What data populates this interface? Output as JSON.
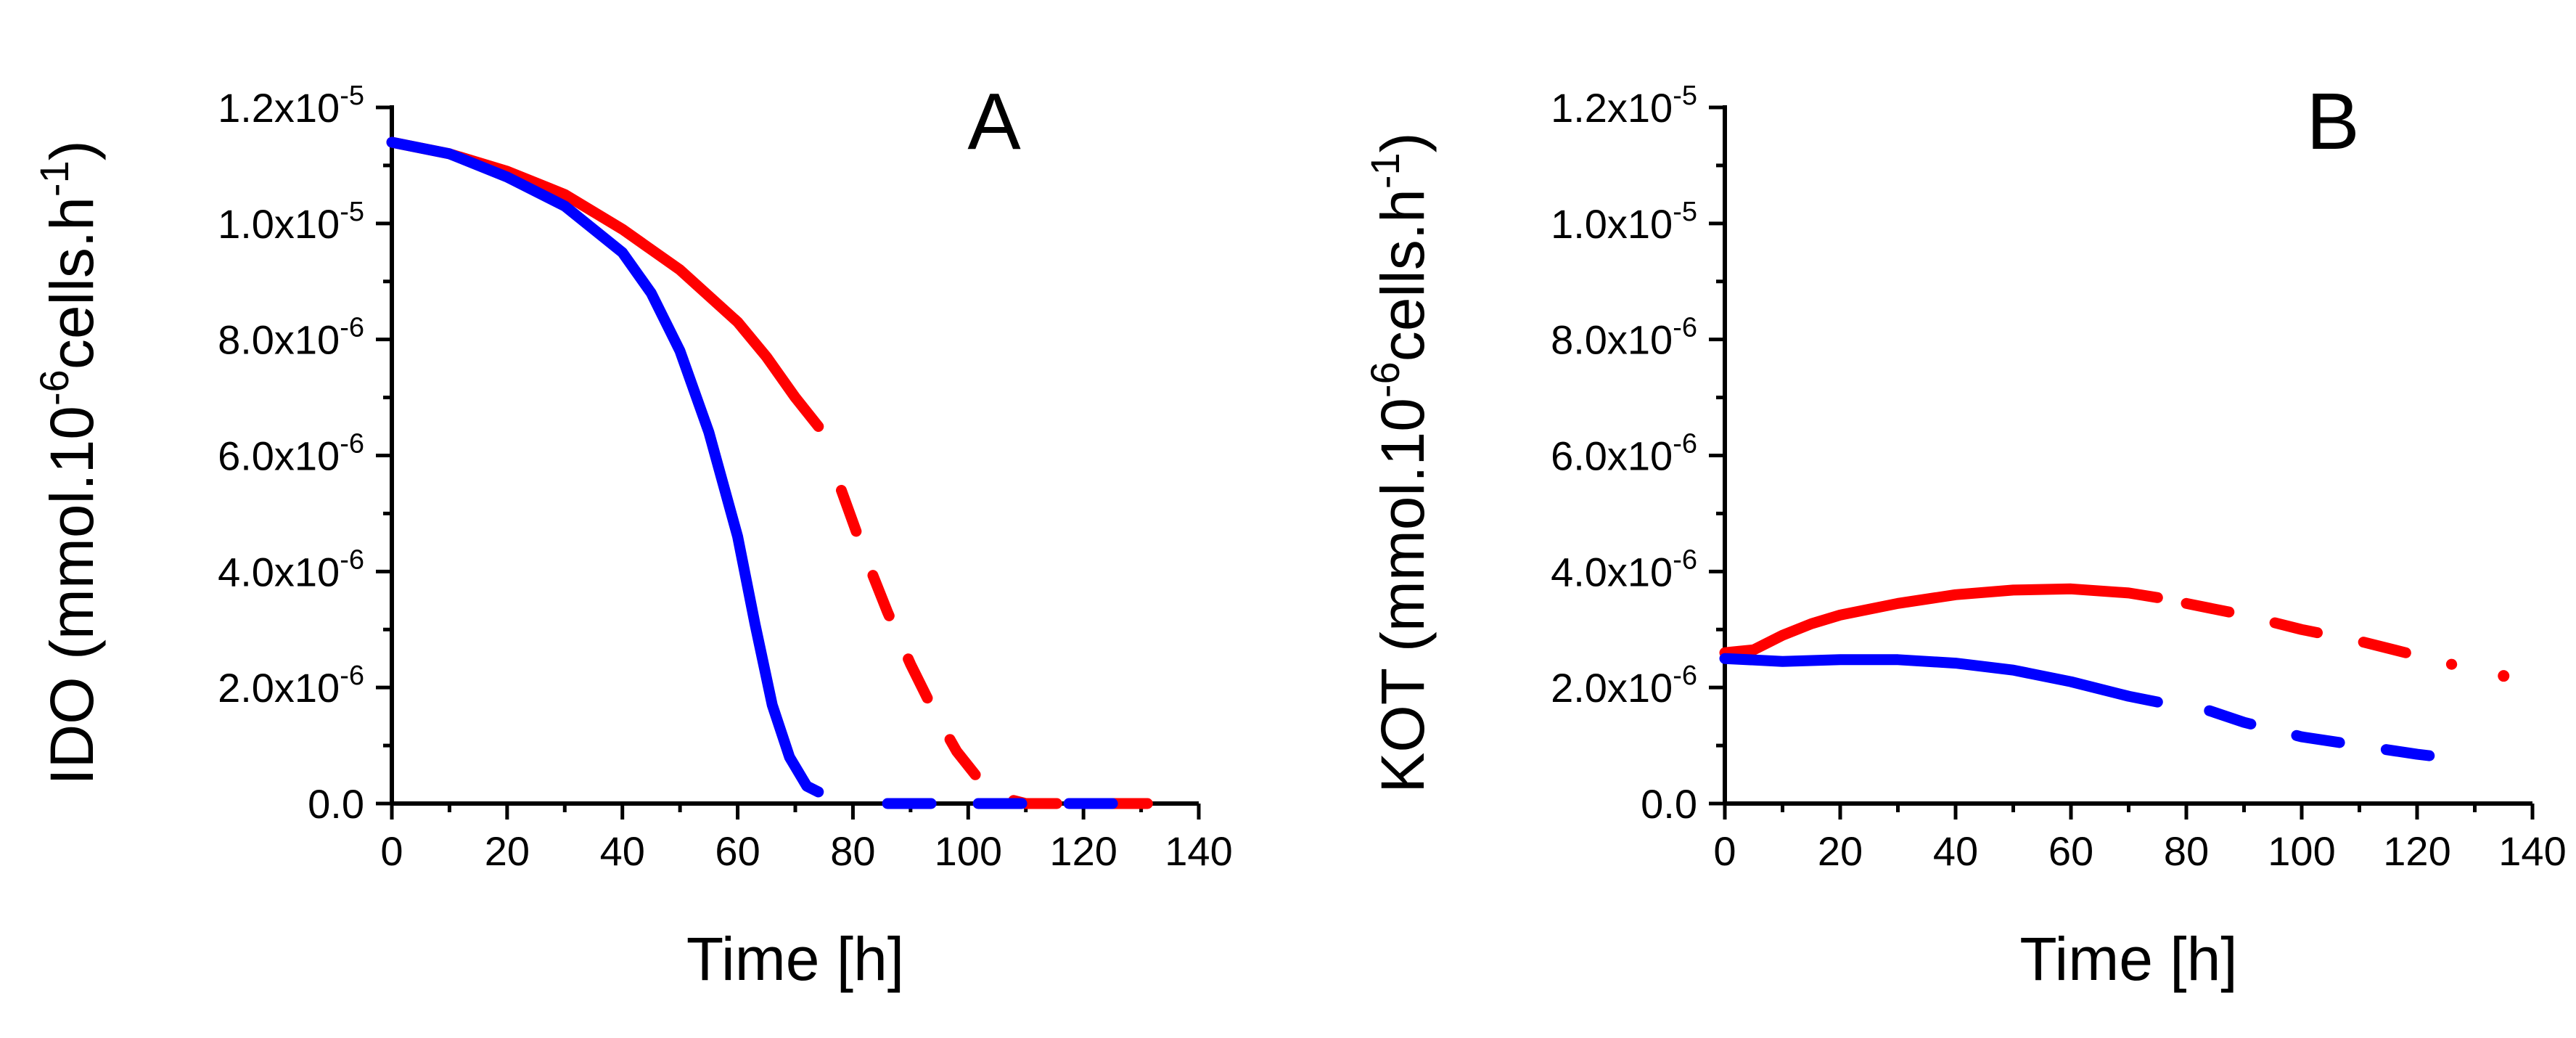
{
  "chart_data": [
    {
      "type": "line",
      "panel_label": "A",
      "title": "",
      "xlabel": "Time [h]",
      "ylabel": {
        "main": "IDO (mmol.10",
        "exp1": "-6",
        "mid": "cells.h",
        "exp2": "-1",
        "close": ")"
      },
      "xlim": [
        0,
        140
      ],
      "ylim": [
        0,
        1.2e-05
      ],
      "grid": false,
      "legend": "none",
      "x_ticks": [
        "0",
        "20",
        "40",
        "60",
        "80",
        "100",
        "120",
        "140"
      ],
      "y_ticks": [
        {
          "value": 0,
          "mant": "0.0",
          "exp": ""
        },
        {
          "value": 2e-06,
          "mant": "2.0x10",
          "exp": "-6"
        },
        {
          "value": 4e-06,
          "mant": "4.0x10",
          "exp": "-6"
        },
        {
          "value": 6e-06,
          "mant": "6.0x10",
          "exp": "-6"
        },
        {
          "value": 8e-06,
          "mant": "8.0x10",
          "exp": "-6"
        },
        {
          "value": 1e-05,
          "mant": "1.0x10",
          "exp": "-5"
        },
        {
          "value": 1.2e-05,
          "mant": "1.2x10",
          "exp": "-5"
        }
      ],
      "series": [
        {
          "name": "red-fitted",
          "color": "#ff0000",
          "style": "solid",
          "x": [
            0,
            10,
            20,
            30,
            40,
            50,
            60,
            65,
            70,
            74
          ],
          "y": [
            1.14e-05,
            1.12e-05,
            1.09e-05,
            1.05e-05,
            9.9e-06,
            9.2e-06,
            8.3e-06,
            7.7e-06,
            7e-06,
            6.5e-06
          ]
        },
        {
          "name": "red-predicted",
          "color": "#ff0000",
          "style": "dashed",
          "x": [
            78,
            82,
            86,
            90,
            94,
            98,
            102,
            106,
            110,
            120,
            134
          ],
          "y": [
            5.4e-06,
            4.3e-06,
            3.3e-06,
            2.4e-06,
            1.6e-06,
            9e-07,
            4e-07,
            1e-07,
            0,
            0,
            0
          ]
        },
        {
          "name": "blue-fitted",
          "color": "#0000ff",
          "style": "solid",
          "x": [
            0,
            10,
            20,
            30,
            40,
            45,
            50,
            55,
            60,
            63,
            66,
            69,
            72,
            74
          ],
          "y": [
            1.14e-05,
            1.12e-05,
            1.08e-05,
            1.03e-05,
            9.5e-06,
            8.8e-06,
            7.8e-06,
            6.4e-06,
            4.6e-06,
            3.1e-06,
            1.7e-06,
            8e-07,
            3e-07,
            2e-07
          ]
        },
        {
          "name": "blue-predicted",
          "color": "#0000ff",
          "style": "dashed",
          "x": [
            86,
            100,
            114,
            127
          ],
          "y": [
            0,
            0,
            0,
            0
          ]
        }
      ]
    },
    {
      "type": "line",
      "panel_label": "B",
      "title": "",
      "xlabel": "Time [h]",
      "ylabel": {
        "main": "KOT (mmol.10",
        "exp1": "-6",
        "mid": "cells.h",
        "exp2": "-1",
        "close": ")"
      },
      "xlim": [
        0,
        140
      ],
      "ylim": [
        0,
        1.2e-05
      ],
      "grid": false,
      "legend": "none",
      "x_ticks": [
        "0",
        "20",
        "40",
        "60",
        "80",
        "100",
        "120",
        "140"
      ],
      "y_ticks": [
        {
          "value": 0,
          "mant": "0.0",
          "exp": ""
        },
        {
          "value": 2e-06,
          "mant": "2.0x10",
          "exp": "-6"
        },
        {
          "value": 4e-06,
          "mant": "4.0x10",
          "exp": "-6"
        },
        {
          "value": 6e-06,
          "mant": "6.0x10",
          "exp": "-6"
        },
        {
          "value": 8e-06,
          "mant": "8.0x10",
          "exp": "-6"
        },
        {
          "value": 1e-05,
          "mant": "1.0x10",
          "exp": "-5"
        },
        {
          "value": 1.2e-05,
          "mant": "1.2x10",
          "exp": "-5"
        }
      ],
      "series": [
        {
          "name": "red-fitted",
          "color": "#ff0000",
          "style": "solid",
          "x": [
            0,
            5,
            10,
            15,
            20,
            30,
            40,
            50,
            60,
            70,
            75
          ],
          "y": [
            2.6e-06,
            2.65e-06,
            2.9e-06,
            3.1e-06,
            3.25e-06,
            3.45e-06,
            3.6e-06,
            3.68e-06,
            3.7e-06,
            3.63e-06,
            3.55e-06
          ]
        },
        {
          "name": "red-predicted",
          "color": "#ff0000",
          "style": "dashed",
          "x": [
            80,
            90,
            100,
            110,
            120,
            126
          ],
          "y": [
            3.45e-06,
            3.25e-06,
            3e-06,
            2.8e-06,
            2.55e-06,
            2.4e-06
          ]
        },
        {
          "name": "red-point",
          "color": "#ff0000",
          "style": "point",
          "x": [
            135
          ],
          "y": [
            2.2e-06
          ]
        },
        {
          "name": "blue-fitted",
          "color": "#0000ff",
          "style": "solid",
          "x": [
            0,
            10,
            20,
            30,
            40,
            50,
            60,
            70,
            75
          ],
          "y": [
            2.5e-06,
            2.45e-06,
            2.48e-06,
            2.48e-06,
            2.42e-06,
            2.3e-06,
            2.1e-06,
            1.85e-06,
            1.75e-06
          ]
        },
        {
          "name": "blue-predicted",
          "color": "#0000ff",
          "style": "dashed",
          "x": [
            84,
            90,
            100,
            110,
            120,
            126
          ],
          "y": [
            1.6e-06,
            1.4e-06,
            1.15e-06,
            1e-06,
            8.5e-07,
            7.8e-07
          ]
        }
      ]
    }
  ]
}
